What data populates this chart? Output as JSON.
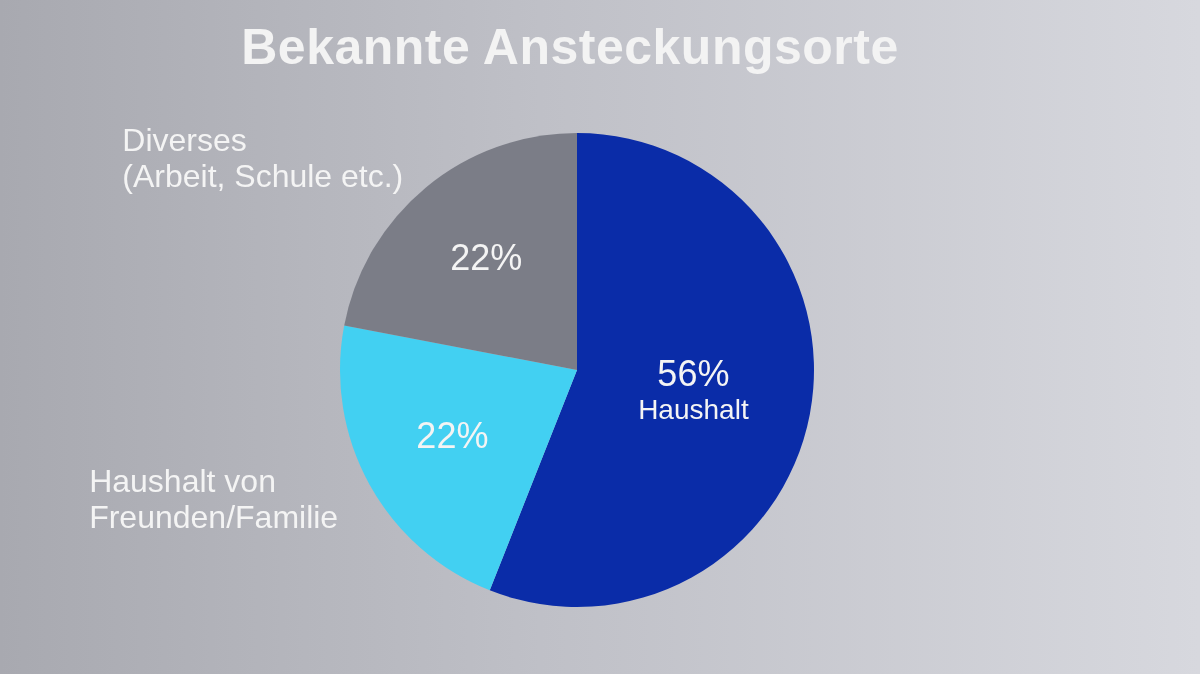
{
  "chart_data": {
    "type": "pie",
    "title": "Bekannte Ansteckungsorte",
    "categories": [
      "Haushalt",
      "Haushalt von\nFreunden/Familie",
      "Diverses\n(Arbeit, Schule etc.)"
    ],
    "values": [
      56,
      22,
      22
    ],
    "colors": [
      "#0a2ca8",
      "#42d0f2",
      "#7b7d87"
    ],
    "value_labels": [
      "56%",
      "22%",
      "22%"
    ]
  }
}
